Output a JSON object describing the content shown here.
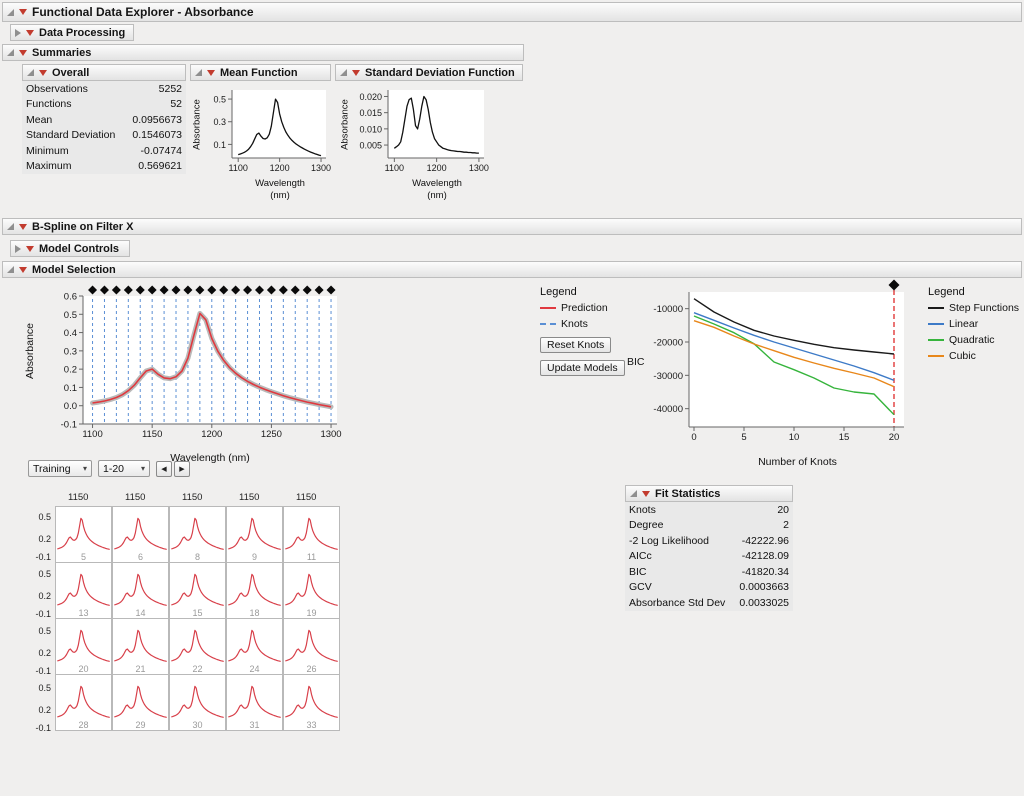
{
  "window": {
    "title": "Functional Data Explorer - Absorbance"
  },
  "outlines": {
    "data_processing": "Data Processing",
    "summaries": "Summaries",
    "overall": "Overall",
    "mean_function": "Mean Function",
    "std_function": "Standard Deviation Function",
    "bspline": "B-Spline on Filter X",
    "model_controls": "Model Controls",
    "model_selection": "Model Selection",
    "fit_statistics": "Fit Statistics",
    "legend_left": "Legend",
    "legend_right": "Legend"
  },
  "overall_table": {
    "rows": [
      {
        "label": "Observations",
        "value": "5252"
      },
      {
        "label": "Functions",
        "value": "52"
      },
      {
        "label": "Mean",
        "value": "0.0956673"
      },
      {
        "label": "Standard Deviation",
        "value": "0.1546073"
      },
      {
        "label": "Minimum",
        "value": "-0.07474"
      },
      {
        "label": "Maximum",
        "value": "0.569621"
      }
    ]
  },
  "fit_table": {
    "rows": [
      {
        "label": "Knots",
        "value": "20"
      },
      {
        "label": "Degree",
        "value": "2"
      },
      {
        "label": "-2 Log Likelihood",
        "value": "-42222.96"
      },
      {
        "label": "AICc",
        "value": "-42128.09"
      },
      {
        "label": "BIC",
        "value": "-41820.34"
      },
      {
        "label": "GCV",
        "value": "0.0003663"
      },
      {
        "label": "Absorbance Std Dev",
        "value": "0.0033025"
      }
    ]
  },
  "controls": {
    "training_select": "Training",
    "range_select": "1-20",
    "caret": "▾",
    "back_arrow": "◀",
    "forward_arrow": "▶",
    "reset_knots": "Reset Knots",
    "update_models": "Update Models",
    "prediction_label": "Prediction",
    "knots_label": "Knots"
  },
  "colors": {
    "prediction": "#e0393f",
    "knots": "#5b8fd4",
    "selection_line": "#e03a3a",
    "data_band": "#b9b9b9"
  },
  "bic_legend": {
    "items": [
      {
        "label": "Step Functions",
        "color": "#1a1a1a"
      },
      {
        "label": "Linear",
        "color": "#3d7ac7"
      },
      {
        "label": "Quadratic",
        "color": "#36b43c"
      },
      {
        "label": "Cubic",
        "color": "#e8871a"
      }
    ]
  },
  "wave_x": [
    1100,
    1105,
    1110,
    1115,
    1120,
    1125,
    1130,
    1135,
    1140,
    1145,
    1150,
    1155,
    1160,
    1165,
    1170,
    1175,
    1180,
    1185,
    1190,
    1195,
    1200,
    1205,
    1210,
    1215,
    1220,
    1225,
    1230,
    1235,
    1240,
    1245,
    1250,
    1255,
    1260,
    1265,
    1270,
    1275,
    1280,
    1285,
    1290,
    1295,
    1300
  ],
  "chart_data": [
    {
      "id": "chart-mean",
      "type": "line",
      "title": "Mean Function",
      "xlabel": "Wavelength (nm)",
      "xlabel_line1": "Wavelength",
      "xlabel_line2": "(nm)",
      "ylabel": "Absorbance",
      "xlim": [
        1085,
        1312
      ],
      "ylim": [
        -0.02,
        0.58
      ],
      "xticks": [
        [
          1100,
          "1100"
        ],
        [
          1200,
          "1200"
        ],
        [
          1300,
          "1300"
        ]
      ],
      "yticks": [
        [
          0.1,
          "0.1"
        ],
        [
          0.3,
          "0.3"
        ],
        [
          0.5,
          "0.5"
        ]
      ],
      "x_ref": "wave_x",
      "series": [
        {
          "name": "Mean",
          "color": "#111111",
          "width": 1.3,
          "values": [
            0.01,
            0.015,
            0.022,
            0.03,
            0.042,
            0.058,
            0.08,
            0.11,
            0.15,
            0.188,
            0.2,
            0.172,
            0.152,
            0.148,
            0.158,
            0.19,
            0.26,
            0.38,
            0.5,
            0.47,
            0.37,
            0.3,
            0.25,
            0.21,
            0.18,
            0.155,
            0.135,
            0.118,
            0.103,
            0.09,
            0.079,
            0.068,
            0.058,
            0.049,
            0.04,
            0.032,
            0.025,
            0.018,
            0.012,
            0.006,
            0.001
          ]
        }
      ]
    },
    {
      "id": "chart-std",
      "type": "line",
      "title": "Standard Deviation Function",
      "xlabel": "Wavelength (nm)",
      "xlabel_line1": "Wavelength",
      "xlabel_line2": "(nm)",
      "ylabel": "Absorbance",
      "xlim": [
        1085,
        1312
      ],
      "ylim": [
        0.001,
        0.022
      ],
      "xticks": [
        [
          1100,
          "1100"
        ],
        [
          1200,
          "1200"
        ],
        [
          1300,
          "1300"
        ]
      ],
      "yticks": [
        [
          0.005,
          "0.005"
        ],
        [
          0.01,
          "0.010"
        ],
        [
          0.015,
          "0.015"
        ],
        [
          0.02,
          "0.020"
        ]
      ],
      "x_ref": "wave_x",
      "series": [
        {
          "name": "Std Dev",
          "color": "#111111",
          "width": 1.3,
          "values": [
            0.004,
            0.0045,
            0.005,
            0.006,
            0.009,
            0.013,
            0.017,
            0.019,
            0.0195,
            0.016,
            0.011,
            0.01,
            0.013,
            0.017,
            0.02,
            0.019,
            0.016,
            0.012,
            0.009,
            0.007,
            0.006,
            0.005,
            0.0045,
            0.004,
            0.0038,
            0.0036,
            0.0034,
            0.0033,
            0.0032,
            0.0031,
            0.003,
            0.003,
            0.0029,
            0.0028,
            0.0028,
            0.0027,
            0.0027,
            0.0026,
            0.0026,
            0.0025,
            0.0025
          ]
        }
      ]
    },
    {
      "id": "chart-spline",
      "type": "line",
      "title": "B-Spline Fit",
      "xlabel": "Wavelength (nm)",
      "ylabel": "Absorbance",
      "xlim": [
        1092,
        1305
      ],
      "ylim": [
        -0.1,
        0.6
      ],
      "xticks": [
        [
          1100,
          "1100"
        ],
        [
          1150,
          "1150"
        ],
        [
          1200,
          "1200"
        ],
        [
          1250,
          "1250"
        ],
        [
          1300,
          "1300"
        ]
      ],
      "yticks": [
        [
          -0.1,
          "-0.1"
        ],
        [
          0,
          "0.0"
        ],
        [
          0.1,
          "0.1"
        ],
        [
          0.2,
          "0.2"
        ],
        [
          0.3,
          "0.3"
        ],
        [
          0.4,
          "0.4"
        ],
        [
          0.5,
          "0.5"
        ],
        [
          0.6,
          "0.6"
        ]
      ],
      "knots": [
        1100,
        1110,
        1120,
        1130,
        1140,
        1150,
        1160,
        1170,
        1180,
        1190,
        1200,
        1210,
        1220,
        1230,
        1240,
        1250,
        1260,
        1270,
        1280,
        1290,
        1300
      ],
      "x_ref": "wave_x",
      "series": [
        {
          "name": "Prediction",
          "color": "#e0393f",
          "width": 1.6,
          "band": "#b9b9b9",
          "band_width": 5,
          "values": [
            0.015,
            0.02,
            0.026,
            0.034,
            0.045,
            0.06,
            0.082,
            0.112,
            0.152,
            0.19,
            0.2,
            0.172,
            0.152,
            0.148,
            0.158,
            0.19,
            0.26,
            0.385,
            0.505,
            0.47,
            0.368,
            0.298,
            0.248,
            0.208,
            0.178,
            0.153,
            0.133,
            0.116,
            0.101,
            0.088,
            0.076,
            0.065,
            0.055,
            0.045,
            0.036,
            0.028,
            0.02,
            0.013,
            0.006,
            0.0,
            -0.006
          ]
        }
      ]
    },
    {
      "id": "chart-bic",
      "type": "line",
      "title": "Model Comparison",
      "xlabel": "Number of Knots",
      "ylabel": "BIC",
      "xlim": [
        -0.5,
        21
      ],
      "ylim": [
        -45500,
        -5000
      ],
      "xticks": [
        [
          0,
          "0"
        ],
        [
          5,
          "5"
        ],
        [
          10,
          "10"
        ],
        [
          15,
          "15"
        ],
        [
          20,
          "20"
        ]
      ],
      "yticks": [
        [
          -10000,
          "-10000"
        ],
        [
          -20000,
          "-20000"
        ],
        [
          -30000,
          "-30000"
        ],
        [
          -40000,
          "-40000"
        ]
      ],
      "vline": 20,
      "diamond_x": 20,
      "x": [
        0,
        2,
        4,
        6,
        8,
        10,
        12,
        14,
        16,
        18,
        20
      ],
      "series": [
        {
          "name": "Step Functions",
          "color": "#1a1a1a",
          "width": 1.4,
          "values": [
            -7000,
            -11000,
            -14000,
            -16500,
            -18200,
            -19500,
            -20700,
            -21700,
            -22400,
            -23000,
            -23600
          ]
        },
        {
          "name": "Linear",
          "color": "#3d7ac7",
          "width": 1.4,
          "values": [
            -11200,
            -13500,
            -15800,
            -18000,
            -20000,
            -21800,
            -23600,
            -25400,
            -27200,
            -29200,
            -31500
          ]
        },
        {
          "name": "Quadratic",
          "color": "#36b43c",
          "width": 1.4,
          "values": [
            -12200,
            -14600,
            -17200,
            -20500,
            -26000,
            -28300,
            -30800,
            -33800,
            -35000,
            -35600,
            -41800
          ]
        },
        {
          "name": "Cubic",
          "color": "#e8871a",
          "width": 1.4,
          "values": [
            -13600,
            -15600,
            -18200,
            -20600,
            -22600,
            -24600,
            -26300,
            -27900,
            -29300,
            -30800,
            -33400
          ]
        }
      ]
    },
    {
      "id": "grid-plots",
      "type": "small_multiples",
      "col_label": "1150",
      "row_ticks": [
        "0.5",
        "0.2",
        "-0.1"
      ],
      "cells": [
        [
          5,
          6,
          8,
          9,
          11
        ],
        [
          13,
          14,
          15,
          18,
          19
        ],
        [
          20,
          21,
          22,
          24,
          26
        ],
        [
          28,
          29,
          30,
          31,
          33
        ]
      ],
      "xlim": [
        1095,
        1305
      ],
      "ylim": [
        -0.2,
        0.68
      ],
      "color": "#d8404a",
      "x_ref": "wave_x",
      "values": [
        0.01,
        0.015,
        0.022,
        0.03,
        0.042,
        0.058,
        0.08,
        0.11,
        0.15,
        0.188,
        0.2,
        0.172,
        0.152,
        0.148,
        0.158,
        0.19,
        0.26,
        0.38,
        0.5,
        0.47,
        0.37,
        0.3,
        0.25,
        0.21,
        0.18,
        0.155,
        0.135,
        0.118,
        0.103,
        0.09,
        0.079,
        0.068,
        0.058,
        0.049,
        0.04,
        0.032,
        0.025,
        0.018,
        0.012,
        0.006,
        0.001
      ]
    }
  ]
}
